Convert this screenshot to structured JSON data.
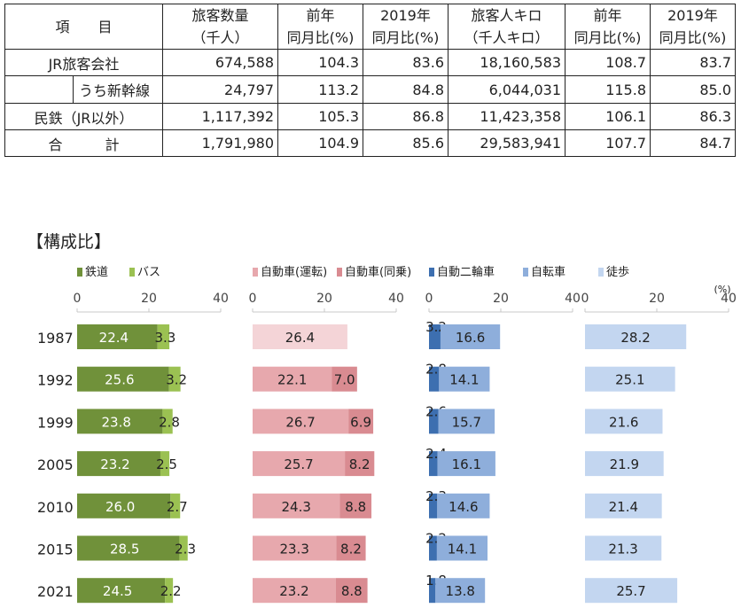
{
  "table": {
    "headers": [
      {
        "line1": "項　　目",
        "line2": ""
      },
      {
        "line1": "旅客数量",
        "line2": "（千人）"
      },
      {
        "line1": "前年",
        "line2": "同月比(%)"
      },
      {
        "line1": "2019年",
        "line2": "同月比(%)"
      },
      {
        "line1": "旅客人キロ",
        "line2": "（千人キロ）"
      },
      {
        "line1": "前年",
        "line2": "同月比(%)"
      },
      {
        "line1": "2019年",
        "line2": "同月比(%)"
      }
    ],
    "rows": [
      {
        "label": "JR旅客会社",
        "values": [
          "674,588",
          "104.3",
          "83.6",
          "18,160,583",
          "108.7",
          "83.7"
        ]
      },
      {
        "label": "うち新幹線",
        "values": [
          "24,797",
          "113.2",
          "84.8",
          "6,044,031",
          "115.8",
          "85.0"
        ]
      },
      {
        "label": "民鉄（JR以外）",
        "values": [
          "1,117,392",
          "105.3",
          "86.8",
          "11,423,358",
          "106.1",
          "86.3"
        ]
      },
      {
        "label": "合　　　計",
        "values": [
          "1,791,980",
          "104.9",
          "85.6",
          "29,583,941",
          "107.7",
          "84.7"
        ]
      }
    ]
  },
  "chart_title": "【構成比】",
  "chart_data": {
    "type": "bar",
    "orientation": "horizontal",
    "stacked": true,
    "unit_label": "(%)",
    "categories": [
      "1987",
      "1992",
      "1999",
      "2005",
      "2010",
      "2015",
      "2021"
    ],
    "axis_range": [
      0,
      40
    ],
    "axis_ticks": [
      0,
      20,
      40
    ],
    "panels": [
      {
        "series": [
          {
            "name": "鉄道",
            "color": "#70913a",
            "values": [
              22.4,
              25.6,
              23.8,
              23.2,
              26.0,
              28.5,
              24.5
            ]
          },
          {
            "name": "バス",
            "color": "#9bc152",
            "values": [
              3.3,
              3.2,
              2.8,
              2.5,
              2.7,
              2.3,
              2.2
            ]
          }
        ]
      },
      {
        "series": [
          {
            "name": "自動車(運転)",
            "color": "#e7a8ad",
            "first_color": "#f4d4d7",
            "values": [
              26.4,
              22.1,
              26.7,
              25.7,
              24.3,
              23.3,
              23.2
            ]
          },
          {
            "name": "自動車(同乗)",
            "color": "#d98b91",
            "values": [
              null,
              7.0,
              6.9,
              8.2,
              8.8,
              8.2,
              8.8
            ]
          }
        ]
      },
      {
        "series": [
          {
            "name": "自動二輪車",
            "color": "#3d6fb0",
            "values": [
              3.2,
              2.8,
              2.6,
              2.4,
              2.3,
              2.2,
              1.8
            ]
          },
          {
            "name": "自転車",
            "color": "#8eaedb",
            "values": [
              16.6,
              14.1,
              15.7,
              16.1,
              14.6,
              14.1,
              13.8
            ]
          }
        ]
      },
      {
        "series": [
          {
            "name": "徒歩",
            "color": "#c3d6f0",
            "values": [
              28.2,
              25.1,
              21.6,
              21.9,
              21.4,
              21.3,
              25.7
            ]
          }
        ]
      }
    ]
  }
}
